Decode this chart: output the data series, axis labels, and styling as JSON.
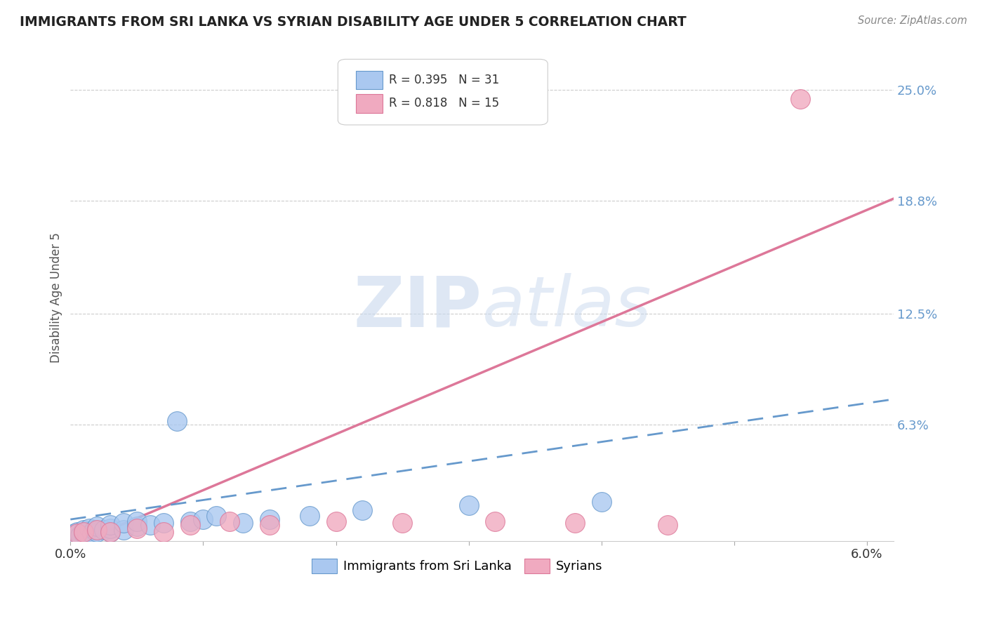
{
  "title": "IMMIGRANTS FROM SRI LANKA VS SYRIAN DISABILITY AGE UNDER 5 CORRELATION CHART",
  "source": "Source: ZipAtlas.com",
  "ylabel": "Disability Age Under 5",
  "xlim": [
    0.0,
    0.062
  ],
  "ylim": [
    -0.002,
    0.27
  ],
  "sri_lanka_R": 0.395,
  "sri_lanka_N": 31,
  "syrian_R": 0.818,
  "syrian_N": 15,
  "sri_lanka_color": "#aac8f0",
  "syrian_color": "#f0aac0",
  "sri_lanka_line_color": "#6699cc",
  "syrian_line_color": "#dd7799",
  "watermark_color": "#c8d8ee",
  "background_color": "#ffffff",
  "sri_lanka_x": [
    0.0003,
    0.0005,
    0.0007,
    0.001,
    0.001,
    0.0012,
    0.0014,
    0.0016,
    0.0018,
    0.002,
    0.002,
    0.0025,
    0.003,
    0.003,
    0.003,
    0.004,
    0.004,
    0.005,
    0.005,
    0.006,
    0.007,
    0.008,
    0.009,
    0.01,
    0.011,
    0.013,
    0.015,
    0.018,
    0.022,
    0.03,
    0.04
  ],
  "sri_lanka_y": [
    0.002,
    0.003,
    0.001,
    0.004,
    0.002,
    0.003,
    0.005,
    0.002,
    0.004,
    0.003,
    0.006,
    0.004,
    0.003,
    0.005,
    0.007,
    0.004,
    0.008,
    0.006,
    0.009,
    0.007,
    0.008,
    0.065,
    0.009,
    0.01,
    0.012,
    0.008,
    0.01,
    0.012,
    0.015,
    0.018,
    0.02
  ],
  "syrian_x": [
    0.0005,
    0.001,
    0.002,
    0.003,
    0.005,
    0.007,
    0.009,
    0.012,
    0.015,
    0.02,
    0.025,
    0.032,
    0.038,
    0.045,
    0.055
  ],
  "syrian_y": [
    0.002,
    0.003,
    0.004,
    0.003,
    0.005,
    0.003,
    0.007,
    0.009,
    0.007,
    0.009,
    0.008,
    0.009,
    0.008,
    0.007,
    0.245
  ],
  "sri_lanka_line_x": [
    0.0,
    0.062
  ],
  "sri_lanka_line_y": [
    0.002,
    0.072
  ],
  "syrian_line_x": [
    0.0,
    0.062
  ],
  "syrian_line_y": [
    -0.005,
    0.193
  ]
}
